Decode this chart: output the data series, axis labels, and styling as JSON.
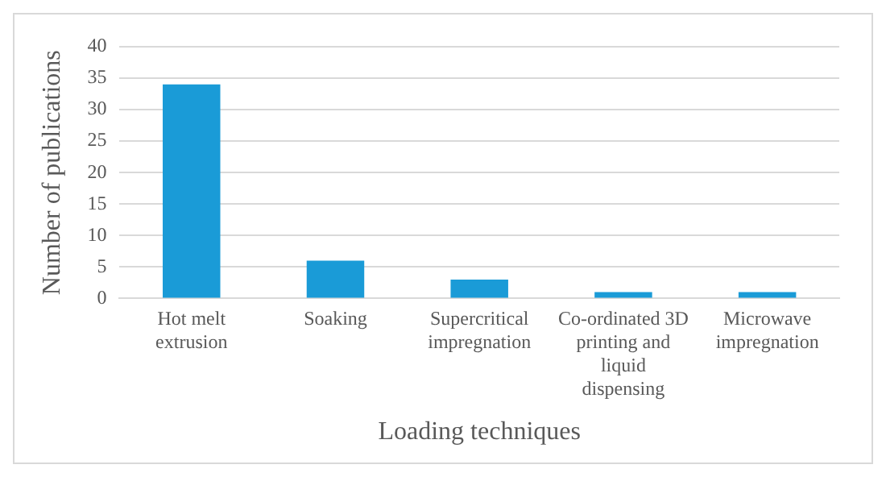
{
  "chart_data": {
    "type": "bar",
    "xlabel": "Loading techniques",
    "ylabel": "Number of publications",
    "categories": [
      "Hot melt extrusion",
      "Soaking",
      "Supercritical impregnation",
      "Co-ordinated 3D printing and liquid dispensing",
      "Microwave impregnation"
    ],
    "values": [
      34,
      6,
      3,
      1,
      1
    ],
    "color": "#1a9bd7",
    "ylim": [
      0,
      40
    ],
    "yticks": [
      0,
      5,
      10,
      15,
      20,
      25,
      30,
      35,
      40
    ],
    "grid": "y",
    "legend": false
  }
}
